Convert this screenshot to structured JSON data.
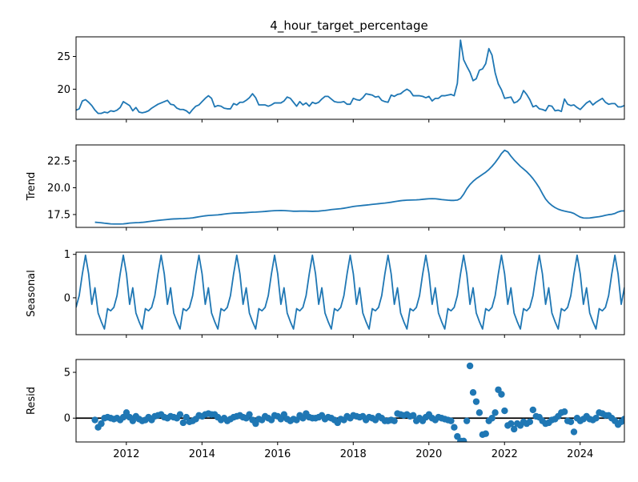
{
  "colors": {
    "series": "#1f77b4",
    "zero_line": "#000000",
    "axes": "#000000"
  },
  "chart_data": [
    {
      "type": "line",
      "panel": "observed",
      "title": "4_hour_target_percentage",
      "ylabel": "",
      "xlim": [
        2010.67,
        2025.17
      ],
      "ylim": [
        15.4,
        28.0
      ],
      "yticks": [
        20,
        25
      ],
      "ytick_labels": [
        "20",
        "25"
      ],
      "x_start": 2010.67,
      "x_step": 0.08333,
      "values": [
        16.8,
        17.0,
        18.2,
        18.4,
        18.0,
        17.5,
        16.8,
        16.3,
        16.3,
        16.5,
        16.4,
        16.7,
        16.6,
        16.8,
        17.2,
        18.1,
        17.8,
        17.5,
        16.7,
        17.2,
        16.5,
        16.4,
        16.5,
        16.7,
        17.1,
        17.4,
        17.7,
        17.9,
        18.1,
        18.3,
        17.7,
        17.6,
        17.1,
        16.9,
        16.9,
        16.7,
        16.3,
        16.9,
        17.4,
        17.6,
        18.1,
        18.6,
        19.0,
        18.6,
        17.3,
        17.5,
        17.4,
        17.1,
        17.0,
        17.0,
        17.8,
        17.6,
        18.0,
        18.0,
        18.3,
        18.7,
        19.3,
        18.7,
        17.6,
        17.6,
        17.6,
        17.4,
        17.6,
        17.9,
        17.9,
        17.9,
        18.2,
        18.8,
        18.6,
        18.0,
        17.4,
        18.1,
        17.6,
        17.9,
        17.4,
        18.0,
        17.8,
        18.0,
        18.5,
        18.9,
        18.9,
        18.5,
        18.1,
        18.0,
        18.0,
        18.1,
        17.7,
        17.7,
        18.6,
        18.4,
        18.3,
        18.7,
        19.3,
        19.2,
        19.1,
        18.8,
        18.9,
        18.3,
        18.1,
        18.0,
        19.1,
        18.9,
        19.2,
        19.3,
        19.7,
        20.0,
        19.7,
        19.0,
        19.0,
        19.0,
        18.9,
        18.7,
        18.9,
        18.2,
        18.6,
        18.6,
        19.0,
        19.0,
        19.1,
        19.2,
        19.0,
        20.9,
        27.5,
        24.5,
        23.5,
        22.6,
        21.3,
        21.6,
        22.9,
        23.1,
        23.9,
        26.2,
        25.2,
        22.5,
        20.8,
        19.9,
        18.6,
        18.7,
        18.8,
        17.9,
        18.1,
        18.6,
        19.8,
        19.2,
        18.4,
        17.3,
        17.5,
        17.0,
        16.9,
        16.7,
        17.5,
        17.4,
        16.7,
        16.8,
        16.6,
        18.5,
        17.7,
        17.5,
        17.6,
        17.2,
        16.9,
        17.4,
        17.9,
        18.2,
        17.6,
        18.0,
        18.3,
        18.6,
        18.0,
        17.7,
        17.8,
        17.8,
        17.3,
        17.3,
        17.5,
        18.1,
        17.7,
        17.7,
        17.6,
        17.7,
        17.5,
        18.1,
        17.5,
        17.0
      ]
    },
    {
      "type": "line",
      "panel": "trend",
      "title": "",
      "ylabel": "Trend",
      "xlim": [
        2010.67,
        2025.17
      ],
      "ylim": [
        16.3,
        24.0
      ],
      "yticks": [
        17.5,
        20.0,
        22.5
      ],
      "ytick_labels": [
        "17.5",
        "20.0",
        "22.5"
      ],
      "x_start": 2011.17,
      "x_step": 0.08333,
      "values": [
        16.78,
        16.76,
        16.73,
        16.69,
        16.66,
        16.63,
        16.62,
        16.62,
        16.62,
        16.63,
        16.66,
        16.7,
        16.72,
        16.74,
        16.75,
        16.77,
        16.8,
        16.84,
        16.88,
        16.92,
        16.95,
        16.98,
        17.01,
        17.04,
        17.07,
        17.09,
        17.1,
        17.11,
        17.12,
        17.14,
        17.16,
        17.19,
        17.24,
        17.29,
        17.34,
        17.38,
        17.41,
        17.43,
        17.45,
        17.47,
        17.5,
        17.54,
        17.58,
        17.61,
        17.63,
        17.64,
        17.65,
        17.66,
        17.68,
        17.7,
        17.72,
        17.73,
        17.75,
        17.77,
        17.79,
        17.82,
        17.84,
        17.86,
        17.87,
        17.88,
        17.87,
        17.85,
        17.83,
        17.81,
        17.81,
        17.82,
        17.82,
        17.82,
        17.81,
        17.8,
        17.81,
        17.82,
        17.85,
        17.88,
        17.92,
        17.96,
        17.99,
        18.02,
        18.05,
        18.09,
        18.14,
        18.2,
        18.25,
        18.29,
        18.32,
        18.35,
        18.38,
        18.41,
        18.45,
        18.48,
        18.51,
        18.54,
        18.57,
        18.61,
        18.65,
        18.7,
        18.75,
        18.79,
        18.82,
        18.84,
        18.85,
        18.86,
        18.87,
        18.89,
        18.92,
        18.95,
        18.97,
        18.98,
        18.97,
        18.94,
        18.9,
        18.87,
        18.84,
        18.82,
        18.82,
        18.85,
        19.0,
        19.4,
        19.9,
        20.3,
        20.6,
        20.85,
        21.05,
        21.25,
        21.45,
        21.7,
        22.0,
        22.35,
        22.75,
        23.2,
        23.5,
        23.35,
        22.95,
        22.6,
        22.3,
        22.0,
        21.75,
        21.5,
        21.2,
        20.85,
        20.45,
        20.0,
        19.45,
        18.95,
        18.6,
        18.35,
        18.15,
        18.0,
        17.9,
        17.82,
        17.76,
        17.7,
        17.6,
        17.42,
        17.26,
        17.18,
        17.17,
        17.18,
        17.22,
        17.26,
        17.3,
        17.36,
        17.43,
        17.49,
        17.52,
        17.6,
        17.74,
        17.83,
        17.84,
        17.83,
        17.82,
        17.82,
        17.81,
        17.8,
        17.8,
        17.79,
        17.78,
        17.77,
        17.76,
        17.74,
        17.7,
        17.64,
        17.61,
        17.59
      ]
    },
    {
      "type": "line",
      "panel": "seasonal",
      "title": "",
      "ylabel": "Seasonal",
      "xlim": [
        2010.67,
        2025.17
      ],
      "ylim": [
        -0.85,
        1.05
      ],
      "yticks": [
        0,
        1
      ],
      "ytick_labels": [
        "0",
        "1"
      ],
      "x_start": 2010.67,
      "x_step": 0.08333,
      "cycle": [
        -0.22,
        0.05,
        0.55,
        0.98,
        0.55,
        -0.15,
        0.23,
        -0.35,
        -0.55,
        -0.72,
        -0.25,
        -0.3
      ],
      "cycles": 15,
      "extra_points": 6
    },
    {
      "type": "scatter",
      "panel": "resid",
      "title": "",
      "ylabel": "Resid",
      "xlim": [
        2010.67,
        2025.17
      ],
      "ylim": [
        -2.6,
        6.4
      ],
      "yticks": [
        0,
        5
      ],
      "ytick_labels": [
        "0",
        "5"
      ],
      "xticks": [
        2012,
        2014,
        2016,
        2018,
        2020,
        2022,
        2024
      ],
      "xtick_labels": [
        "2012",
        "2014",
        "2016",
        "2018",
        "2020",
        "2022",
        "2024"
      ],
      "x_start": 2011.17,
      "x_step": 0.08333,
      "zero_line": true,
      "values": [
        -0.2,
        -1.0,
        -0.6,
        0.0,
        0.1,
        0.0,
        -0.1,
        0.0,
        -0.2,
        0.1,
        0.6,
        0.1,
        -0.3,
        0.2,
        -0.1,
        -0.3,
        -0.2,
        0.1,
        -0.2,
        0.2,
        0.3,
        0.4,
        0.1,
        0.0,
        0.2,
        0.1,
        0.0,
        0.4,
        -0.5,
        0.1,
        -0.4,
        -0.3,
        -0.1,
        0.3,
        0.2,
        0.4,
        0.5,
        0.4,
        0.4,
        0.1,
        -0.2,
        0.0,
        -0.3,
        -0.1,
        0.1,
        0.2,
        0.3,
        0.1,
        0.0,
        0.4,
        -0.2,
        -0.6,
        -0.1,
        -0.2,
        0.2,
        0.0,
        -0.2,
        0.3,
        0.2,
        -0.1,
        0.4,
        -0.1,
        -0.3,
        -0.1,
        -0.2,
        0.3,
        0.0,
        0.5,
        0.1,
        0.0,
        0.0,
        0.1,
        0.3,
        -0.1,
        0.1,
        0.0,
        -0.2,
        -0.5,
        -0.1,
        -0.2,
        0.2,
        0.0,
        0.3,
        0.2,
        0.1,
        0.2,
        -0.2,
        0.1,
        0.0,
        -0.2,
        0.2,
        0.0,
        -0.3,
        -0.3,
        -0.2,
        -0.3,
        0.5,
        0.4,
        0.3,
        0.4,
        0.2,
        0.3,
        -0.3,
        0.0,
        -0.3,
        0.1,
        0.4,
        0.0,
        -0.2,
        0.1,
        0.0,
        -0.1,
        -0.2,
        -0.3,
        -1.0,
        -2.0,
        -2.5,
        -2.5,
        -0.3,
        5.7,
        2.8,
        1.8,
        0.6,
        -1.8,
        -1.7,
        -0.3,
        0.0,
        0.6,
        3.1,
        2.6,
        0.8,
        -0.8,
        -0.6,
        -1.2,
        -0.6,
        -0.8,
        -0.4,
        -0.6,
        -0.4,
        0.9,
        0.2,
        0.1,
        -0.3,
        -0.6,
        -0.5,
        -0.2,
        -0.1,
        0.2,
        0.6,
        0.7,
        -0.3,
        -0.4,
        -1.5,
        0.0,
        -0.3,
        -0.1,
        0.2,
        -0.1,
        -0.2,
        0.0,
        0.6,
        0.5,
        0.3,
        0.3,
        0.0,
        -0.3,
        -0.7,
        -0.4,
        -0.1,
        -0.5,
        0.0,
        0.3,
        0.4,
        0.6,
        0.7,
        0.4,
        0.5
      ]
    }
  ]
}
